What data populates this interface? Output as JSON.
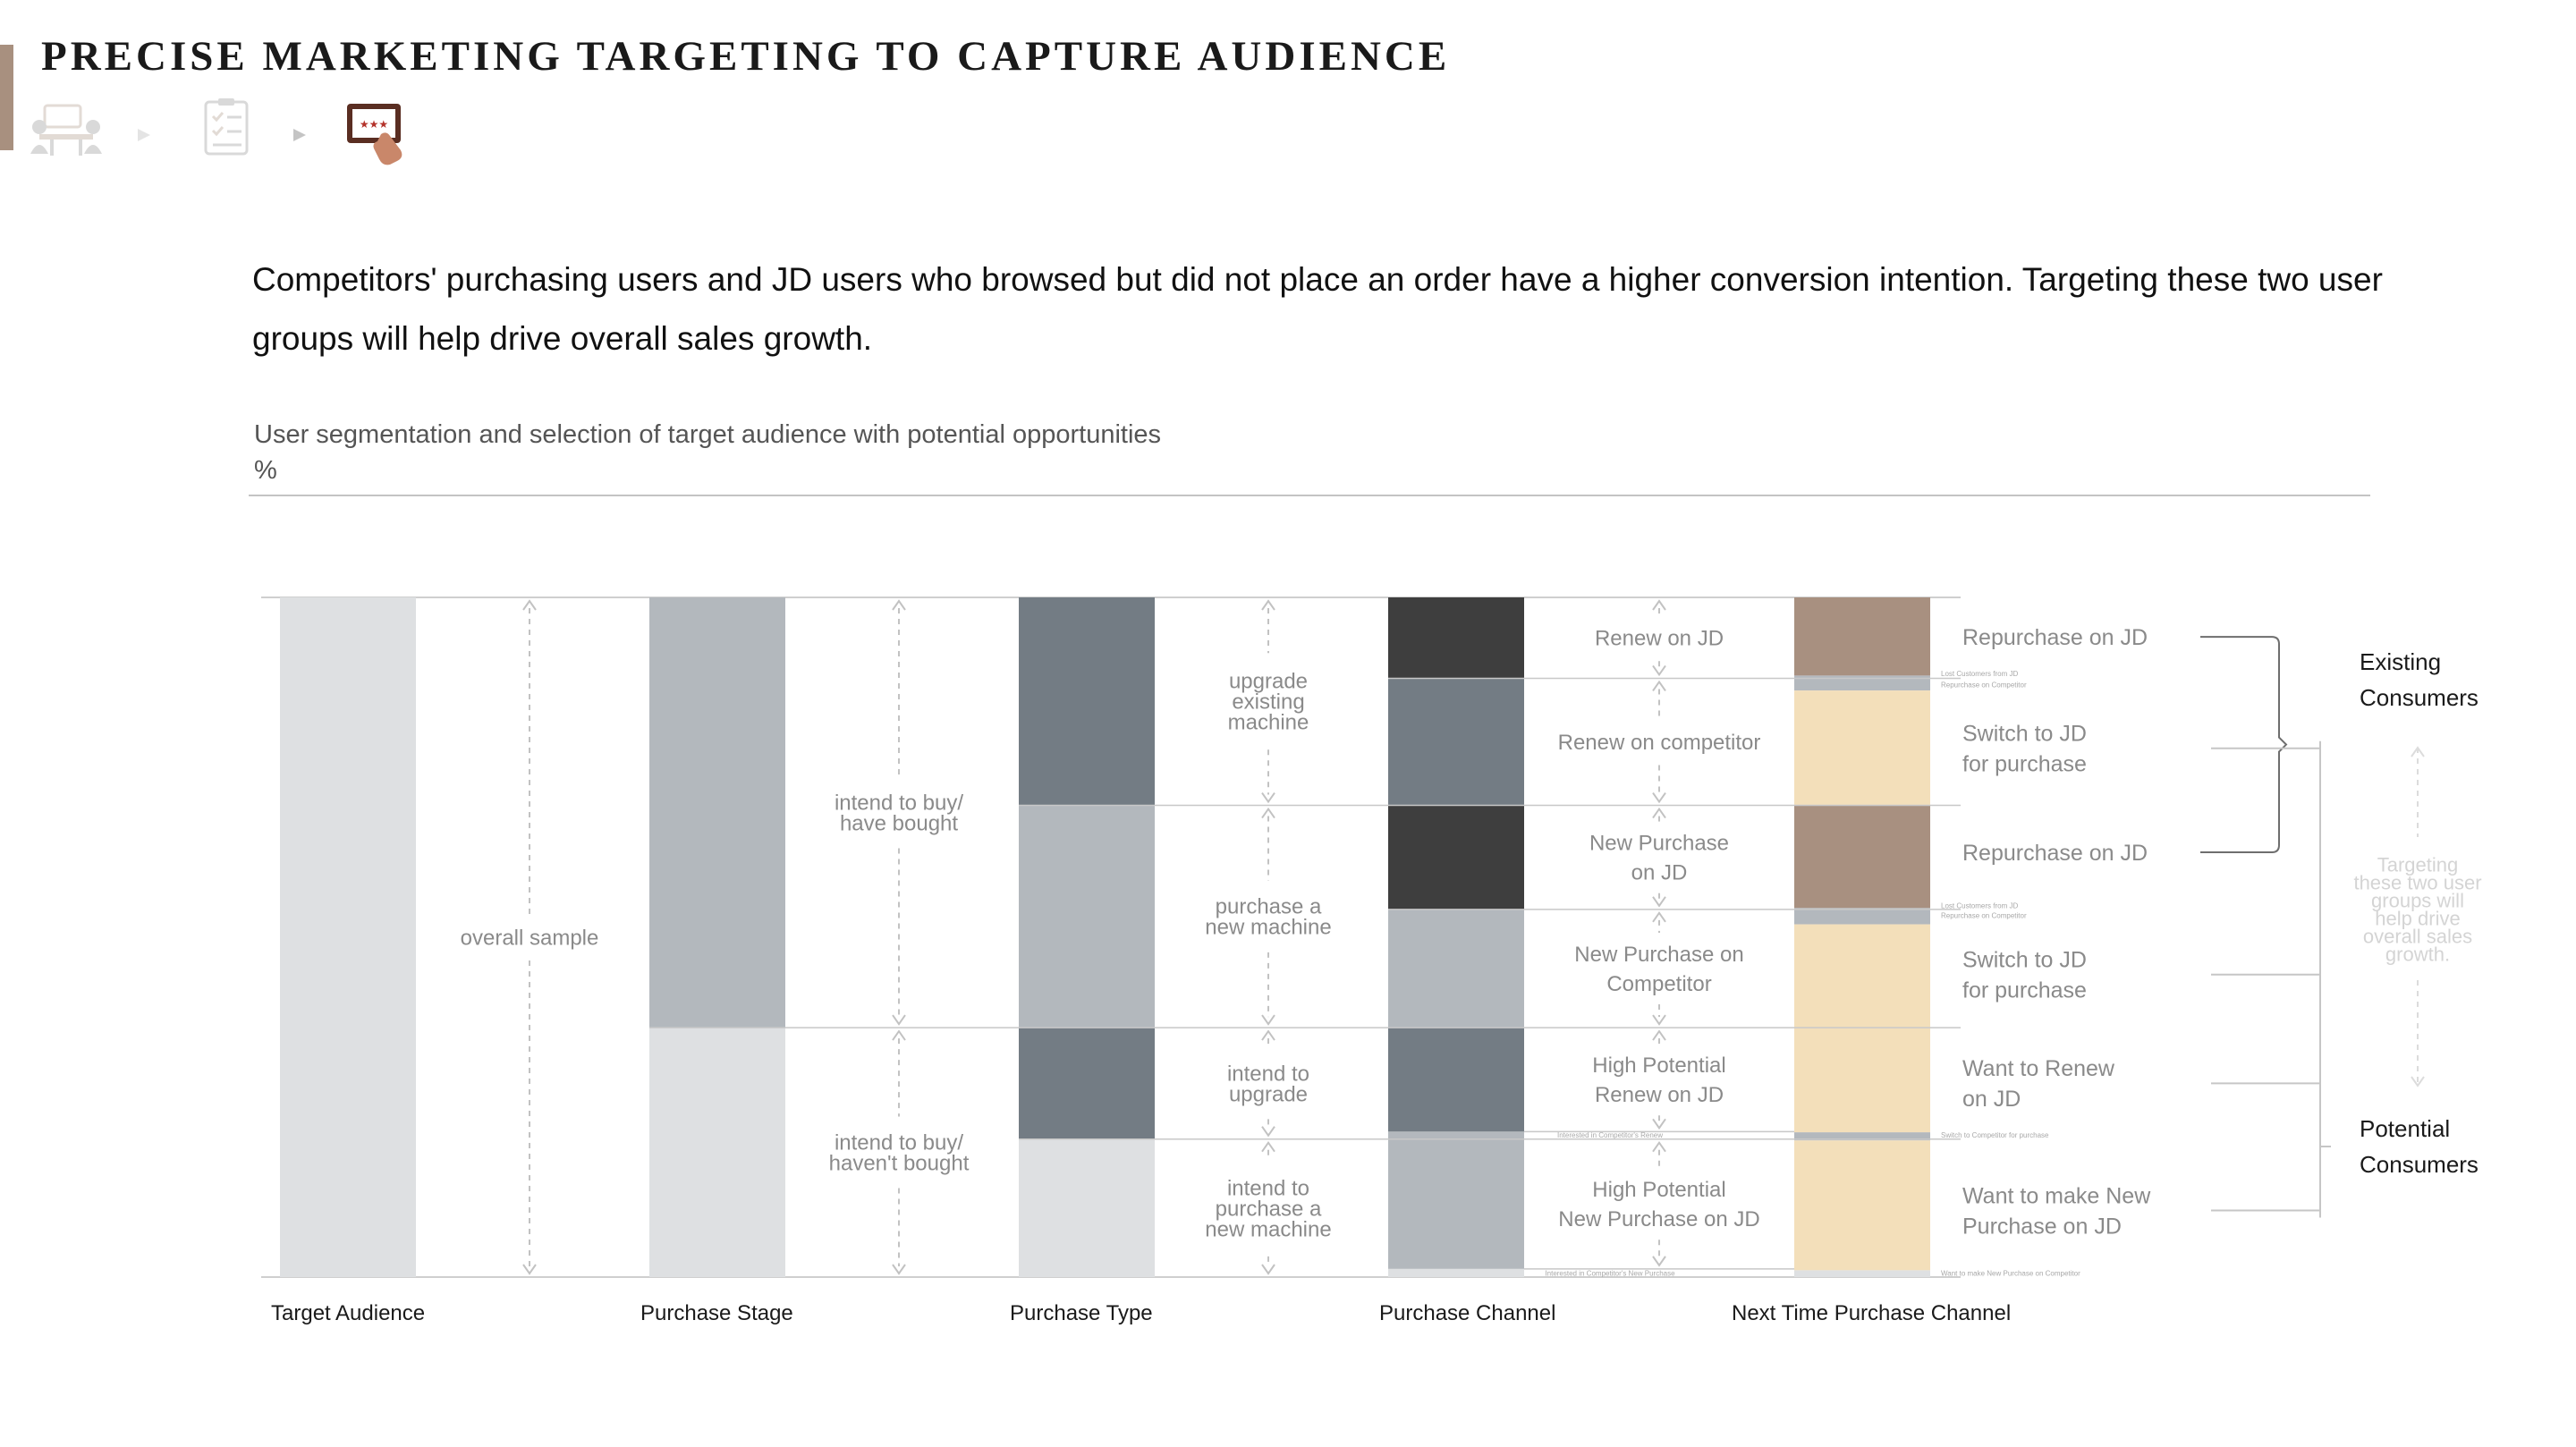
{
  "page": {
    "title": "PRECISE MARKETING TARGETING TO CAPTURE AUDIENCE",
    "headline": "Competitors' purchasing users and JD users who browsed but did not place an order have a higher conversion intention. Targeting these two user groups will help drive overall sales growth."
  },
  "progress_steps": {
    "icons": [
      "meeting-icon",
      "checklist-icon",
      "rating-tablet-icon"
    ],
    "active_index": 2
  },
  "chart": {
    "title": "User segmentation and selection of target audience with potential opportunities",
    "unit": "%"
  },
  "colors": {
    "light_gray": "#dee0e2",
    "mid_gray": "#b3b8bd",
    "slate": "#737c84",
    "charcoal": "#3e3e3e",
    "taupe": "#a89080",
    "cream": "#f3dfba",
    "accent": "#a8907f"
  },
  "chart_data": {
    "type": "sankey",
    "stages": [
      "Target Audience",
      "Purchase Stage",
      "Purchase Type",
      "Purchase Channel",
      "Next Time Purchase Channel"
    ],
    "columns": [
      {
        "stage": "Target Audience",
        "segments": [
          {
            "value": 100,
            "color": "light_gray"
          }
        ]
      },
      {
        "stage": "Purchase Stage",
        "segments": [
          {
            "value": 63.3,
            "color": "mid_gray"
          },
          {
            "value": 36.7,
            "color": "light_gray"
          }
        ]
      },
      {
        "stage": "Purchase Type",
        "segments": [
          {
            "value": 30.6,
            "color": "slate"
          },
          {
            "value": 32.7,
            "color": "mid_gray"
          },
          {
            "value": 16.4,
            "color": "slate"
          },
          {
            "value": 20.3,
            "color": "light_gray"
          }
        ]
      },
      {
        "stage": "Purchase Channel",
        "segments": [
          {
            "value": 11.9,
            "color": "charcoal"
          },
          {
            "value": 18.7,
            "color": "slate"
          },
          {
            "value": 15.3,
            "color": "charcoal"
          },
          {
            "value": 17.4,
            "color": "mid_gray"
          },
          {
            "value": 15.3,
            "color": "slate"
          },
          {
            "value": 1.1,
            "color": "mid_gray"
          },
          {
            "value": 19.1,
            "color": "mid_gray"
          },
          {
            "value": 1.2,
            "color": "light_gray"
          }
        ]
      },
      {
        "stage": "Next Time Purchase Channel",
        "segments": [
          {
            "value": 11.5,
            "color": "taupe"
          },
          {
            "value": 2.2,
            "color": "mid_gray"
          },
          {
            "value": 16.9,
            "color": "cream"
          },
          {
            "value": 15.1,
            "color": "taupe"
          },
          {
            "value": 2.4,
            "color": "mid_gray"
          },
          {
            "value": 15.3,
            "color": "cream"
          },
          {
            "value": 15.3,
            "color": "cream"
          },
          {
            "value": 1.2,
            "color": "mid_gray"
          },
          {
            "value": 19.1,
            "color": "cream"
          },
          {
            "value": 1.0,
            "color": "light_gray"
          }
        ]
      }
    ],
    "gap_labels": [
      {
        "lines": [
          "overall sample"
        ],
        "span": [
          0,
          100
        ]
      },
      {
        "lines": [
          "intend to buy/",
          "have bought"
        ],
        "span": [
          0,
          63.3
        ]
      },
      {
        "lines": [
          "intend to buy/",
          "haven't bought"
        ],
        "span": [
          63.3,
          100
        ]
      },
      {
        "lines": [
          "upgrade",
          "existing",
          "machine"
        ],
        "span": [
          0,
          30.6
        ]
      },
      {
        "lines": [
          "purchase a",
          "new machine"
        ],
        "span": [
          30.6,
          63.3
        ]
      },
      {
        "lines": [
          "intend to",
          "upgrade"
        ],
        "span": [
          63.3,
          79.7
        ]
      },
      {
        "lines": [
          "intend to",
          "purchase a",
          "new machine"
        ],
        "span": [
          79.7,
          100
        ]
      },
      {
        "lines": [
          "Renew on JD"
        ],
        "span": [
          0,
          11.9
        ]
      },
      {
        "lines": [
          "Renew on competitor"
        ],
        "span": [
          11.9,
          30.6
        ]
      },
      {
        "lines": [
          "New Purchase",
          "on JD"
        ],
        "span": [
          30.6,
          45.9
        ]
      },
      {
        "lines": [
          "New Purchase on",
          "Competitor"
        ],
        "span": [
          45.9,
          63.3
        ]
      },
      {
        "lines": [
          "High Potential",
          "Renew on JD"
        ],
        "span": [
          63.3,
          78.6
        ]
      },
      {
        "lines": [
          "High Potential",
          "New Purchase on JD"
        ],
        "span": [
          79.7,
          98.8
        ]
      }
    ],
    "tiny_labels": [
      {
        "text": "Interested in Competitor's Renew",
        "at": 79.1,
        "column": "Purchase Channel"
      },
      {
        "text": "Interested in Competitor's New Purchase",
        "at": 99.4,
        "column": "Purchase Channel"
      },
      {
        "text": "Lost Customers from JD",
        "at": 11.2,
        "column": "Next Time Purchase Channel"
      },
      {
        "text": "Repurchase on Competitor",
        "at": 12.8,
        "column": "Next Time Purchase Channel"
      },
      {
        "text": "Lost Customers from JD",
        "at": 45.3,
        "column": "Next Time Purchase Channel"
      },
      {
        "text": "Repurchase on Competitor",
        "at": 46.8,
        "column": "Next Time Purchase Channel"
      },
      {
        "text": "Switch to Competitor for purchase",
        "at": 79.1,
        "column": "Next Time Purchase Channel"
      },
      {
        "text": "Want to make New Purchase on Competitor",
        "at": 99.4,
        "column": "Next Time Purchase Channel"
      }
    ],
    "right_labels": [
      {
        "lines": [
          "Repurchase on JD"
        ],
        "at": 5.8
      },
      {
        "lines": [
          "Switch to JD",
          "for purchase"
        ],
        "at": 22.2
      },
      {
        "lines": [
          "Repurchase on JD"
        ],
        "at": 37.5
      },
      {
        "lines": [
          "Switch to JD",
          "for purchase"
        ],
        "at": 55.5
      },
      {
        "lines": [
          "Want to Renew",
          "on JD"
        ],
        "at": 71.5
      },
      {
        "lines": [
          "Want to make New",
          "Purchase on JD"
        ],
        "at": 90.2
      }
    ],
    "groups": [
      {
        "lines": [
          "Existing",
          "Consumers"
        ],
        "members": [
          0,
          2
        ]
      },
      {
        "lines": [
          "Potential",
          "Consumers"
        ],
        "members": [
          1,
          3,
          4,
          5
        ]
      }
    ],
    "callout": [
      "Targeting",
      "these two user",
      "groups will",
      "help drive",
      "overall sales",
      "growth."
    ]
  }
}
